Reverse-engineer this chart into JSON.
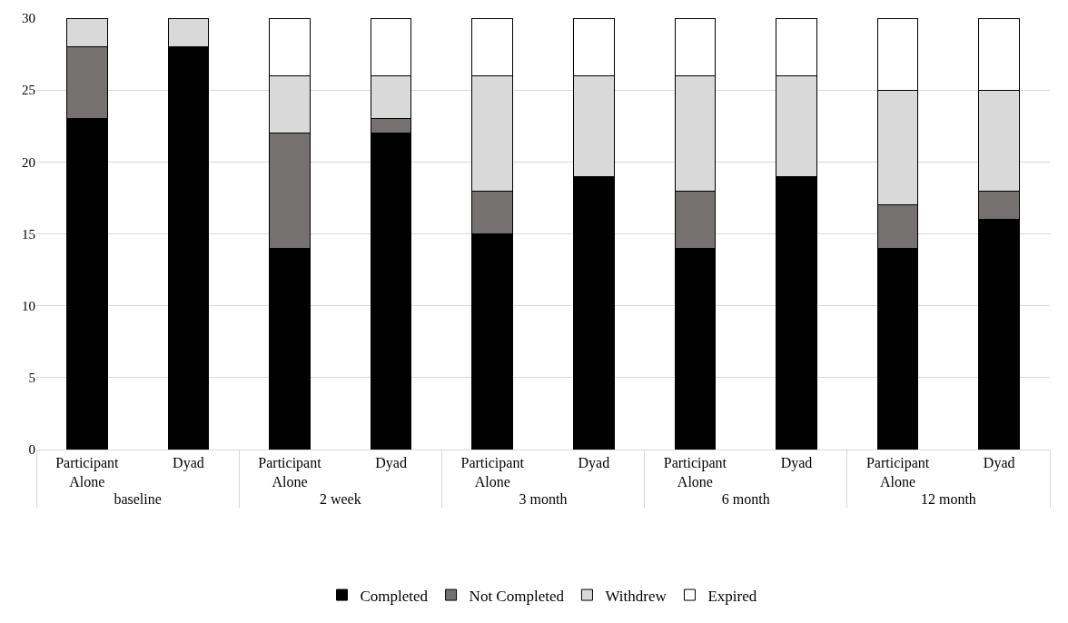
{
  "chart_data": {
    "type": "bar",
    "stacked": true,
    "categories": [
      "Participant Alone",
      "Dyad",
      "Participant Alone",
      "Dyad",
      "Participant Alone",
      "Dyad",
      "Participant Alone",
      "Dyad",
      "Participant Alone",
      "Dyad"
    ],
    "annotations": [
      "baseline",
      "2 week",
      "3 month",
      "6 month",
      "12 month"
    ],
    "series": [
      {
        "name": "Completed",
        "color": "#000000",
        "values": [
          23,
          28,
          14,
          22,
          15,
          19,
          14,
          19,
          14,
          16
        ]
      },
      {
        "name": "Not Completed",
        "color": "#767171",
        "values": [
          5,
          0,
          8,
          1,
          3,
          0,
          4,
          0,
          3,
          2
        ]
      },
      {
        "name": "Withdrew",
        "color": "#d9d9d9",
        "values": [
          2,
          2,
          4,
          3,
          8,
          7,
          8,
          7,
          8,
          7
        ]
      },
      {
        "name": "Expired",
        "color": "#ffffff",
        "values": [
          0,
          0,
          4,
          4,
          4,
          4,
          4,
          4,
          5,
          5
        ]
      }
    ],
    "ylim": [
      0,
      30
    ],
    "yticks": [
      0,
      5,
      10,
      15,
      20,
      25,
      30
    ],
    "grid": "y",
    "legend": "bottom"
  }
}
